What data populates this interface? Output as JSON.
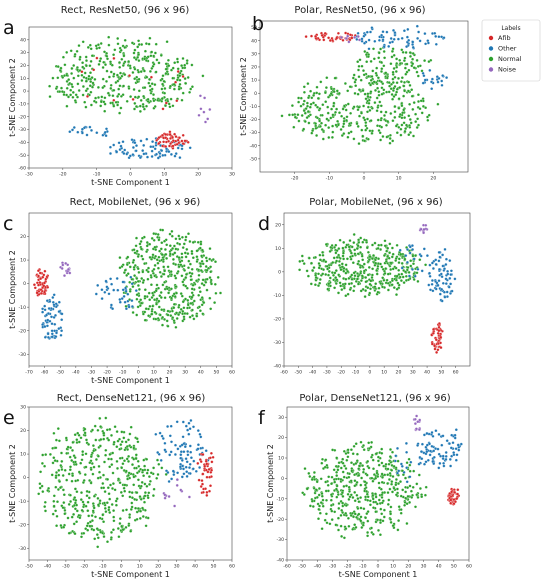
{
  "colors": {
    "Afib": "#d62728",
    "Other": "#1f77b4",
    "Normal": "#2ca02c",
    "Noise": "#9467bd"
  },
  "legend": {
    "title": "Labels",
    "entries": [
      "Afib",
      "Other",
      "Normal",
      "Noise"
    ]
  },
  "chart_data": [
    {
      "id": "a",
      "type": "scatter",
      "letter": "a",
      "title": "Rect, ResNet50, (96 x 96)",
      "xlabel": "t-SNE Component 1",
      "ylabel": "t-SNE Component 2",
      "xlim": [
        -30,
        30
      ],
      "ylim": [
        -60,
        50
      ],
      "xticks": [
        -30,
        -20,
        -10,
        0,
        10,
        20,
        30
      ],
      "yticks": [
        -60,
        -50,
        -40,
        -30,
        -20,
        -10,
        0,
        10,
        20,
        30,
        40
      ],
      "clusters": [
        {
          "label": "Normal",
          "cx": -2,
          "cy": 12,
          "rx": 21,
          "ry": 28,
          "n": 420
        },
        {
          "label": "Other",
          "cx": 6,
          "cy": -45,
          "rx": 12,
          "ry": 8,
          "n": 80
        },
        {
          "label": "Afib",
          "cx": 12,
          "cy": -38,
          "rx": 5,
          "ry": 6,
          "n": 55
        },
        {
          "label": "Other",
          "cx": -12,
          "cy": -32,
          "rx": 6,
          "ry": 5,
          "n": 20
        },
        {
          "label": "Noise",
          "cx": 22,
          "cy": -15,
          "rx": 3,
          "ry": 12,
          "n": 8
        },
        {
          "label": "Afib",
          "cx": 0,
          "cy": 5,
          "rx": 18,
          "ry": 25,
          "n": 15
        }
      ]
    },
    {
      "id": "b",
      "type": "scatter",
      "letter": "b",
      "title": "Polar, ResNet50, (96 x 96)",
      "xlabel": "",
      "ylabel": "t-SNE Component 2",
      "xlim": [
        -30,
        30
      ],
      "ylim": [
        -60,
        55
      ],
      "xticks": [
        -20,
        -10,
        0,
        10,
        20
      ],
      "yticks": [
        -50,
        -40,
        -30,
        -20,
        -10,
        0,
        10,
        20,
        30,
        40,
        50
      ],
      "clusters": [
        {
          "label": "Normal",
          "cx": -1,
          "cy": -12,
          "rx": 20,
          "ry": 25,
          "n": 380
        },
        {
          "label": "Normal",
          "cx": 8,
          "cy": 20,
          "rx": 12,
          "ry": 14,
          "n": 110
        },
        {
          "label": "Afib",
          "cx": -9,
          "cy": 43,
          "rx": 8,
          "ry": 3,
          "n": 45
        },
        {
          "label": "Other",
          "cx": 10,
          "cy": 42,
          "rx": 14,
          "ry": 8,
          "n": 70
        },
        {
          "label": "Noise",
          "cx": -4,
          "cy": 42,
          "rx": 3,
          "ry": 3,
          "n": 8
        },
        {
          "label": "Other",
          "cx": 20,
          "cy": 10,
          "rx": 4,
          "ry": 8,
          "n": 20
        }
      ]
    },
    {
      "id": "c",
      "type": "scatter",
      "letter": "c",
      "title": "Rect, MobileNet, (96 x 96)",
      "xlabel": "t-SNE Component 1",
      "ylabel": "t-SNE Component 2",
      "xlim": [
        -70,
        60
      ],
      "ylim": [
        -35,
        30
      ],
      "xticks": [
        -70,
        -60,
        -50,
        -40,
        -30,
        -20,
        -10,
        0,
        10,
        20,
        30,
        40,
        50,
        60
      ],
      "yticks": [
        -30,
        -20,
        -10,
        0,
        10,
        20
      ],
      "clusters": [
        {
          "label": "Normal",
          "cx": 20,
          "cy": 2,
          "rx": 30,
          "ry": 20,
          "n": 480
        },
        {
          "label": "Afib",
          "cx": -62,
          "cy": 0,
          "rx": 5,
          "ry": 6,
          "n": 55
        },
        {
          "label": "Other",
          "cx": -55,
          "cy": -15,
          "rx": 7,
          "ry": 10,
          "n": 70
        },
        {
          "label": "Other",
          "cx": -15,
          "cy": -5,
          "rx": 14,
          "ry": 10,
          "n": 40
        },
        {
          "label": "Noise",
          "cx": -47,
          "cy": 6,
          "rx": 4,
          "ry": 3,
          "n": 15
        }
      ]
    },
    {
      "id": "d",
      "type": "scatter",
      "letter": "d",
      "title": "Polar, MobileNet, (96 x 96)",
      "xlabel": "",
      "ylabel": "",
      "xlim": [
        -60,
        70
      ],
      "ylim": [
        -40,
        25
      ],
      "xticks": [
        -60,
        -50,
        -40,
        -30,
        -20,
        -10,
        0,
        10,
        20,
        30,
        40,
        50,
        60
      ],
      "yticks": [
        -40,
        -30,
        -20,
        -10,
        0,
        10,
        20
      ],
      "clusters": [
        {
          "label": "Normal",
          "cx": -5,
          "cy": 2,
          "rx": 40,
          "ry": 12,
          "n": 450
        },
        {
          "label": "Other",
          "cx": 50,
          "cy": -2,
          "rx": 10,
          "ry": 10,
          "n": 75
        },
        {
          "label": "Afib",
          "cx": 47,
          "cy": -28,
          "rx": 4,
          "ry": 6,
          "n": 55
        },
        {
          "label": "Noise",
          "cx": 38,
          "cy": 18,
          "rx": 3,
          "ry": 2,
          "n": 10
        },
        {
          "label": "Other",
          "cx": 30,
          "cy": 5,
          "rx": 12,
          "ry": 8,
          "n": 20
        }
      ]
    },
    {
      "id": "e",
      "type": "scatter",
      "letter": "e",
      "title": "Rect, DenseNet121, (96 x 96)",
      "xlabel": "t-SNE Component 1",
      "ylabel": "t-SNE Component 2",
      "xlim": [
        -50,
        60
      ],
      "ylim": [
        -35,
        30
      ],
      "xticks": [
        -50,
        -40,
        -30,
        -20,
        -10,
        0,
        10,
        20,
        30,
        40,
        50,
        60
      ],
      "yticks": [
        -30,
        -20,
        -10,
        0,
        10,
        20,
        30
      ],
      "clusters": [
        {
          "label": "Normal",
          "cx": -12,
          "cy": -2,
          "rx": 32,
          "ry": 25,
          "n": 480
        },
        {
          "label": "Other",
          "cx": 32,
          "cy": 12,
          "rx": 14,
          "ry": 14,
          "n": 90
        },
        {
          "label": "Afib",
          "cx": 46,
          "cy": 2,
          "rx": 5,
          "ry": 10,
          "n": 45
        },
        {
          "label": "Noise",
          "cx": 30,
          "cy": -8,
          "rx": 8,
          "ry": 8,
          "n": 12
        }
      ]
    },
    {
      "id": "f",
      "type": "scatter",
      "letter": "f",
      "title": "Polar, DenseNet121, (96 x 96)",
      "xlabel": "t-SNE Component 1",
      "ylabel": "t-SNE Component 2",
      "xlim": [
        -60,
        60
      ],
      "ylim": [
        -40,
        35
      ],
      "xticks": [
        -60,
        -50,
        -40,
        -30,
        -20,
        -10,
        0,
        10,
        20,
        30,
        40,
        50,
        60
      ],
      "yticks": [
        -40,
        -30,
        -20,
        -10,
        0,
        10,
        20,
        30
      ],
      "clusters": [
        {
          "label": "Normal",
          "cx": -10,
          "cy": -5,
          "rx": 38,
          "ry": 22,
          "n": 480
        },
        {
          "label": "Other",
          "cx": 40,
          "cy": 15,
          "rx": 15,
          "ry": 10,
          "n": 80
        },
        {
          "label": "Afib",
          "cx": 50,
          "cy": -9,
          "rx": 4,
          "ry": 4,
          "n": 40
        },
        {
          "label": "Noise",
          "cx": 26,
          "cy": 27,
          "rx": 3,
          "ry": 4,
          "n": 12
        },
        {
          "label": "Other",
          "cx": 20,
          "cy": 8,
          "rx": 10,
          "ry": 10,
          "n": 20
        }
      ]
    }
  ]
}
